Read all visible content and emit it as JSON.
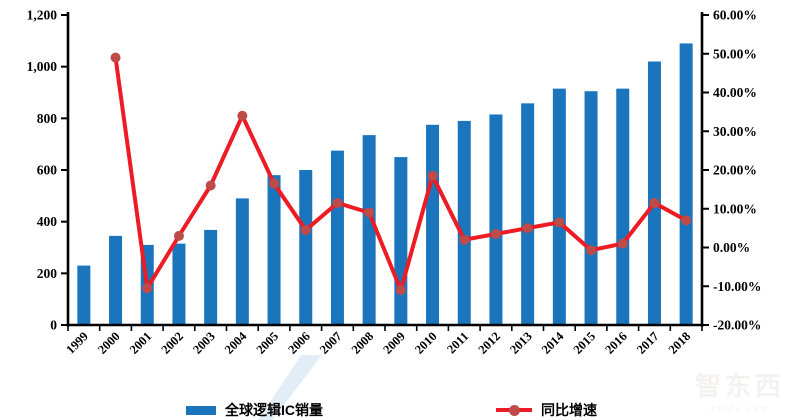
{
  "chart_data": {
    "type": "bar",
    "combo": "bar+line",
    "title": "",
    "categories": [
      "1999",
      "2000",
      "2001",
      "2002",
      "2003",
      "2004",
      "2005",
      "2006",
      "2007",
      "2008",
      "2009",
      "2010",
      "2011",
      "2012",
      "2013",
      "2014",
      "2015",
      "2016",
      "2017",
      "2018"
    ],
    "series": [
      {
        "name": "全球逻辑IC销量",
        "type": "bar",
        "y_axis": "left",
        "color": "#1B75BC",
        "values": [
          230,
          345,
          310,
          315,
          368,
          490,
          580,
          600,
          675,
          735,
          650,
          775,
          790,
          815,
          858,
          915,
          905,
          915,
          1020,
          1090
        ]
      },
      {
        "name": "同比增速",
        "type": "line",
        "y_axis": "right",
        "color": "#EC1B24",
        "marker_color": "#BE4B48",
        "values": [
          null,
          49,
          -10.5,
          3,
          16,
          34,
          16.5,
          4.5,
          11.5,
          9,
          -11,
          18.5,
          2,
          3.5,
          5,
          6.5,
          -0.7,
          1,
          11.5,
          7
        ]
      }
    ],
    "left_axis": {
      "min": 0,
      "max": 1200,
      "step": 200,
      "tick_labels": [
        "0",
        "200",
        "400",
        "600",
        "800",
        "1,000",
        "1,200"
      ]
    },
    "right_axis": {
      "min": -20,
      "max": 60,
      "step": 10,
      "tick_labels": [
        "-20.00%",
        "-10.00%",
        "0.00%",
        "10.00%",
        "20.00%",
        "30.00%",
        "40.00%",
        "50.00%",
        "60.00%"
      ]
    },
    "grid": false,
    "legend_position": "bottom",
    "axis_color": "#000000"
  },
  "watermark": {
    "brand": "智东西",
    "domain": "zhidx.com"
  }
}
